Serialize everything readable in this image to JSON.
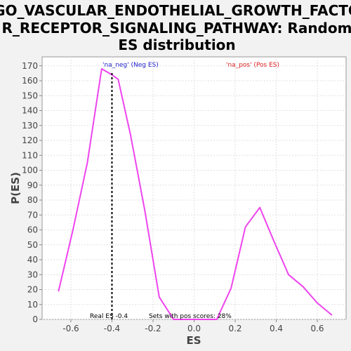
{
  "chart_data": {
    "type": "line",
    "title_lines": [
      "GO_VASCULAR_ENDOTHELIAL_GROWTH_FACTO",
      "R_RECEPTOR_SIGNALING_PATHWAY: Random",
      "ES distribution"
    ],
    "xlabel": "ES",
    "ylabel": "P(ES)",
    "xlim": [
      -0.74,
      0.74
    ],
    "ylim": [
      0,
      176
    ],
    "xticks": [
      -0.6,
      -0.4,
      -0.2,
      0.0,
      0.2,
      0.4,
      0.6
    ],
    "xtick_labels": [
      "-0.6",
      "-0.4",
      "-0.2",
      "0.0",
      "0.2",
      "0.4",
      "0.6"
    ],
    "yticks": [
      0,
      10,
      20,
      30,
      40,
      50,
      60,
      70,
      80,
      90,
      100,
      110,
      120,
      130,
      140,
      150,
      160,
      170
    ],
    "ytick_labels": [
      "0",
      "10",
      "20",
      "30",
      "40",
      "50",
      "60",
      "70",
      "80",
      "90",
      "100",
      "110",
      "120",
      "130",
      "140",
      "150",
      "160",
      "170"
    ],
    "grid": true,
    "series": [
      {
        "color": "#ee44ee",
        "points": [
          [
            -0.66,
            19
          ],
          [
            -0.59,
            60
          ],
          [
            -0.52,
            105
          ],
          [
            -0.45,
            168
          ],
          [
            -0.4,
            164
          ],
          [
            -0.37,
            161
          ],
          [
            -0.31,
            124
          ],
          [
            -0.24,
            73
          ],
          [
            -0.17,
            15
          ],
          [
            -0.1,
            0
          ],
          [
            -0.03,
            0
          ],
          [
            0.04,
            0
          ],
          [
            0.11,
            0
          ],
          [
            0.18,
            21
          ],
          [
            0.25,
            62
          ],
          [
            0.32,
            75
          ],
          [
            0.39,
            52
          ],
          [
            0.46,
            30
          ],
          [
            0.53,
            22
          ],
          [
            0.6,
            11
          ],
          [
            0.67,
            3
          ]
        ]
      }
    ],
    "real_es": -0.4,
    "annotations": {
      "neg_label": "'na_neg' (Neg ES)",
      "pos_label": "'na_pos' (Pos ES)",
      "real_es_label": "Real ES -0.4",
      "pos_sets_label": "Sets with pos scores: 28%"
    },
    "colors": {
      "neg_label": "#2222cc",
      "pos_label": "#dd2222",
      "line": "#ee44ee"
    }
  }
}
